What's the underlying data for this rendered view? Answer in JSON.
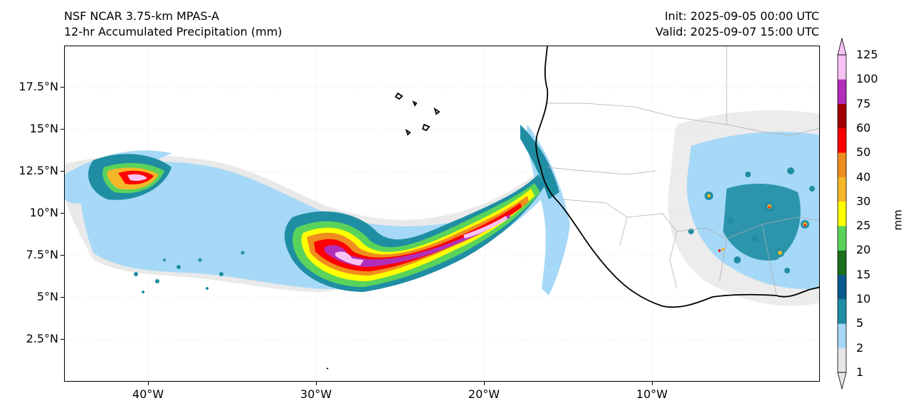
{
  "title": {
    "model": "NSF NCAR 3.75-km MPAS-A",
    "field": "12-hr Accumulated Precipitation (mm)",
    "init": "Init: 2025-09-05 00:00 UTC",
    "valid": "Valid: 2025-09-07 15:00 UTC"
  },
  "axes": {
    "lat_labels": [
      "17.5°N",
      "15°N",
      "12.5°N",
      "10°N",
      "7.5°N",
      "5°N",
      "2.5°N"
    ],
    "lon_labels": [
      "40°W",
      "30°W",
      "20°W",
      "10°W"
    ]
  },
  "colorbar": {
    "units": "mm",
    "levels": [
      "1",
      "2",
      "5",
      "10",
      "15",
      "20",
      "25",
      "30",
      "40",
      "50",
      "60",
      "75",
      "100",
      "125"
    ],
    "colors": [
      "#e5e5e5",
      "#a6d8f7",
      "#1f8ea3",
      "#085a8d",
      "#1a6f1a",
      "#5ad35a",
      "#ffff00",
      "#f5b728",
      "#ef8d1f",
      "#ff0000",
      "#a00000",
      "#b12fb8",
      "#f8c3f4"
    ]
  },
  "map": {
    "grid": true,
    "coastline_color": "#000000",
    "border_color": "#aaaaaa"
  }
}
